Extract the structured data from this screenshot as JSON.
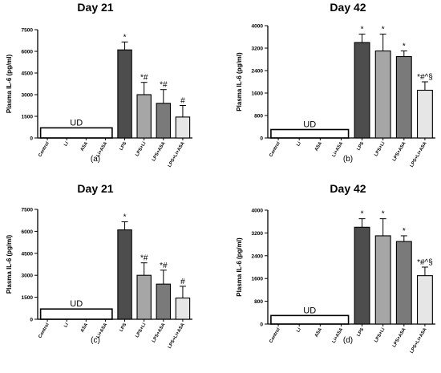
{
  "chart_data": [
    {
      "type": "bar",
      "panel": "(a)",
      "title": "Day 21",
      "ylabel": "Plasma IL-6 (pg/ml)",
      "xlabel": "",
      "ylim": [
        0,
        7500
      ],
      "yticks": [
        0,
        1500,
        3000,
        4500,
        6000,
        7500
      ],
      "categories": [
        "Control",
        "Li",
        "ASA",
        "Li+ASA",
        "LPS",
        "LPS+Li",
        "LPS+ASA",
        "LPS+Li+ASA"
      ],
      "values": [
        null,
        null,
        null,
        null,
        6100,
        3000,
        2400,
        1450
      ],
      "errors": [
        null,
        null,
        null,
        null,
        550,
        850,
        950,
        800
      ],
      "annotations": [
        "",
        "",
        "",
        "",
        "*",
        "*#",
        "*#",
        "#"
      ],
      "bar_colors": [
        "",
        "",
        "",
        "",
        "#4d4d4d",
        "#a6a6a6",
        "#7a7a7a",
        "#e6e6e6"
      ],
      "ud_label": "UD",
      "ud_value": 700,
      "grid": false
    },
    {
      "type": "bar",
      "panel": "(b)",
      "title": "Day 42",
      "ylabel": "Plasma IL-6 (pg/ml)",
      "xlabel": "",
      "ylim": [
        0,
        4000
      ],
      "yticks": [
        0,
        800,
        1600,
        2400,
        3200,
        4000
      ],
      "categories": [
        "Control",
        "Li",
        "ASA",
        "Li+ASA",
        "LPS",
        "LPS+Li",
        "LPS+ASA",
        "LPS+Li+ASA"
      ],
      "values": [
        null,
        null,
        null,
        null,
        3400,
        3100,
        2900,
        1700
      ],
      "errors": [
        null,
        null,
        null,
        null,
        300,
        600,
        200,
        300
      ],
      "annotations": [
        "",
        "",
        "",
        "",
        "*",
        "*",
        "*",
        "*#^§"
      ],
      "bar_colors": [
        "",
        "",
        "",
        "",
        "#4d4d4d",
        "#a6a6a6",
        "#7a7a7a",
        "#e6e6e6"
      ],
      "ud_label": "UD",
      "ud_value": 300,
      "grid": false
    },
    {
      "type": "bar",
      "panel": "(c)",
      "title": "Day 21",
      "ylabel": "Plasma IL-6 (pg/ml)",
      "xlabel": "",
      "ylim": [
        0,
        7500
      ],
      "yticks": [
        0,
        1500,
        3000,
        4500,
        6000,
        7500
      ],
      "categories": [
        "Control",
        "Li",
        "ASA",
        "Li+ASA",
        "LPS",
        "LPS+Li",
        "LPS+ASA",
        "LPS+Li+ASA"
      ],
      "values": [
        null,
        null,
        null,
        null,
        6100,
        3000,
        2400,
        1450
      ],
      "errors": [
        null,
        null,
        null,
        null,
        550,
        850,
        950,
        800
      ],
      "annotations": [
        "",
        "",
        "",
        "",
        "*",
        "*#",
        "*#",
        "#"
      ],
      "bar_colors": [
        "",
        "",
        "",
        "",
        "#4d4d4d",
        "#a6a6a6",
        "#7a7a7a",
        "#e6e6e6"
      ],
      "ud_label": "UD",
      "ud_value": 700,
      "grid": false
    },
    {
      "type": "bar",
      "panel": "(d)",
      "title": "Day 42",
      "ylabel": "Plasma IL-6 (pg/ml)",
      "xlabel": "",
      "ylim": [
        0,
        4000
      ],
      "yticks": [
        0,
        800,
        1600,
        2400,
        3200,
        4000
      ],
      "categories": [
        "Control",
        "Li",
        "ASA",
        "Li+ASA",
        "LPS",
        "LPS+Li",
        "LPS+ASA",
        "LPS+Li+ASA"
      ],
      "values": [
        null,
        null,
        null,
        null,
        3400,
        3100,
        2900,
        1700
      ],
      "errors": [
        null,
        null,
        null,
        null,
        300,
        600,
        200,
        300
      ],
      "annotations": [
        "",
        "",
        "",
        "",
        "*",
        "*",
        "*",
        "*#^§"
      ],
      "bar_colors": [
        "",
        "",
        "",
        "",
        "#4d4d4d",
        "#a6a6a6",
        "#7a7a7a",
        "#e6e6e6"
      ],
      "ud_label": "UD",
      "ud_value": 300,
      "grid": false
    }
  ]
}
